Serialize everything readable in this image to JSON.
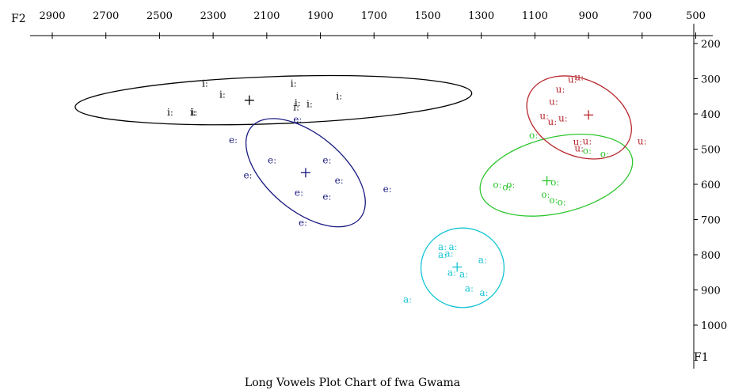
{
  "chart_data": {
    "type": "scatter",
    "title": "Long Vowels Plot Chart of fwa Gwama",
    "x_axis_label": "F2",
    "y_axis_label": "F1",
    "x_axis_reversed": true,
    "y_axis_reversed": true,
    "xlim": [
      2900,
      500
    ],
    "ylim": [
      200,
      1000
    ],
    "x_ticks": [
      2900,
      2700,
      2500,
      2300,
      2100,
      1900,
      1700,
      1500,
      1300,
      1100,
      900,
      700,
      500
    ],
    "y_ticks": [
      200,
      300,
      400,
      500,
      600,
      700,
      800,
      900,
      1000
    ],
    "series": [
      {
        "name": "iː",
        "color": "#000000",
        "points": [
          [
            2330,
            313
          ],
          [
            2265,
            345
          ],
          [
            2370,
            395
          ],
          [
            2460,
            395
          ],
          [
            2375,
            395
          ],
          [
            2000,
            313
          ],
          [
            1985,
            369
          ],
          [
            1940,
            372
          ],
          [
            1990,
            381
          ],
          [
            1830,
            349
          ]
        ],
        "mean": [
          2165,
          361
        ],
        "ellipse": {
          "cx": 2075,
          "cy": 361,
          "rx": 740,
          "ry": 67,
          "rotate": -2
        }
      },
      {
        "name": "eː",
        "color": "#1a1a80",
        "points": [
          [
            1985,
            416
          ],
          [
            2225,
            474
          ],
          [
            2080,
            532
          ],
          [
            1875,
            532
          ],
          [
            2170,
            574
          ],
          [
            1830,
            589
          ],
          [
            1980,
            624
          ],
          [
            1875,
            635
          ],
          [
            1650,
            614
          ],
          [
            1965,
            709
          ]
        ],
        "mean": [
          1955,
          567
        ],
        "ellipse": {
          "cx": 1955,
          "cy": 567,
          "rx": 265,
          "ry": 108,
          "rotate": 40
        }
      },
      {
        "name": "aː",
        "color": "#16c4d4",
        "points": [
          [
            1445,
            778
          ],
          [
            1405,
            778
          ],
          [
            1420,
            797
          ],
          [
            1445,
            800
          ],
          [
            1295,
            815
          ],
          [
            1410,
            851
          ],
          [
            1365,
            855
          ],
          [
            1345,
            896
          ],
          [
            1290,
            908
          ],
          [
            1575,
            927
          ]
        ],
        "mean": [
          1390,
          835
        ],
        "ellipse": {
          "cx": 1370,
          "cy": 837,
          "rx": 155,
          "ry": 113,
          "rotate": 0
        }
      },
      {
        "name": "oː",
        "color": "#2ec52e",
        "points": [
          [
            1105,
            461
          ],
          [
            905,
            504
          ],
          [
            840,
            514
          ],
          [
            1240,
            601
          ],
          [
            1190,
            601
          ],
          [
            1205,
            608
          ],
          [
            1025,
            594
          ],
          [
            1060,
            629
          ],
          [
            1030,
            645
          ],
          [
            1000,
            650
          ]
        ],
        "mean": [
          1055,
          590
        ],
        "ellipse": {
          "cx": 1020,
          "cy": 574,
          "rx": 290,
          "ry": 108,
          "rotate": -13
        }
      },
      {
        "name": "uː",
        "color": "#b8282e",
        "points": [
          [
            935,
            296
          ],
          [
            960,
            302
          ],
          [
            1005,
            330
          ],
          [
            1030,
            365
          ],
          [
            1065,
            406
          ],
          [
            995,
            412
          ],
          [
            1035,
            422
          ],
          [
            905,
            478
          ],
          [
            940,
            480
          ],
          [
            935,
            498
          ],
          [
            700,
            478
          ]
        ],
        "mean": [
          900,
          403
        ],
        "ellipse": {
          "cx": 935,
          "cy": 410,
          "rx": 205,
          "ry": 108,
          "rotate": 25
        }
      }
    ]
  }
}
